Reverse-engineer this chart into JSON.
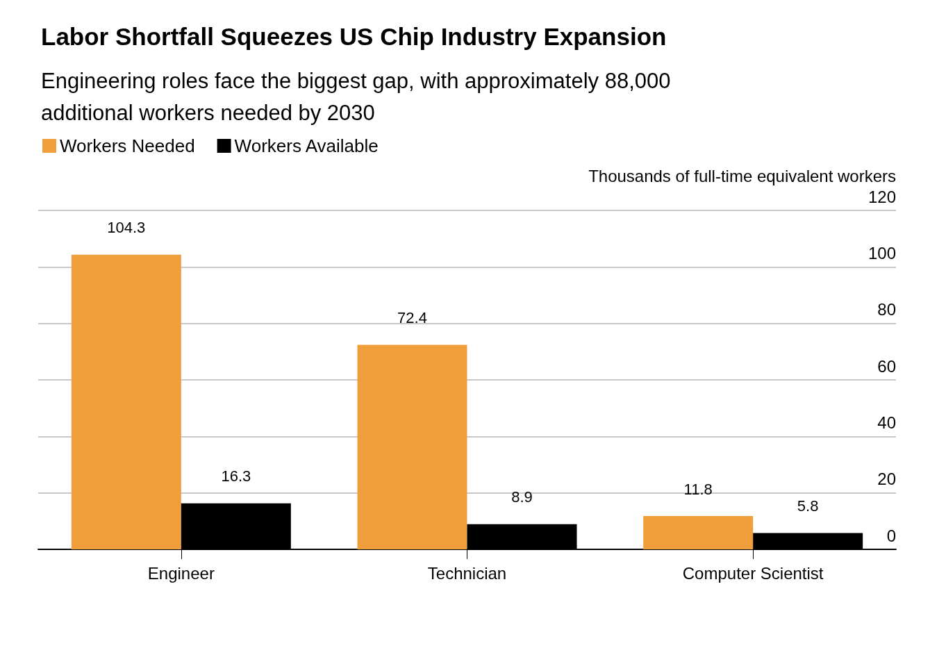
{
  "chart_data": {
    "type": "bar",
    "title": "Labor Shortfall Squeezes US Chip Industry Expansion",
    "subtitle": "Engineering roles face the biggest gap, with approximately 88,000\nadditional workers needed by 2030",
    "ylabel": "Thousands of full-time equivalent workers",
    "categories": [
      "Engineer",
      "Technician",
      "Computer Scientist"
    ],
    "series": [
      {
        "name": "Workers Needed",
        "color": "#ef9e3b",
        "values": [
          104.3,
          72.4,
          11.8
        ]
      },
      {
        "name": "Workers Available",
        "color": "#000000",
        "values": [
          16.3,
          8.9,
          5.8
        ]
      }
    ],
    "ylim": [
      0,
      120
    ],
    "yticks": [
      0,
      20,
      40,
      60,
      80,
      100,
      120
    ],
    "grid": "y",
    "legend": "top left",
    "data_labels": true
  }
}
